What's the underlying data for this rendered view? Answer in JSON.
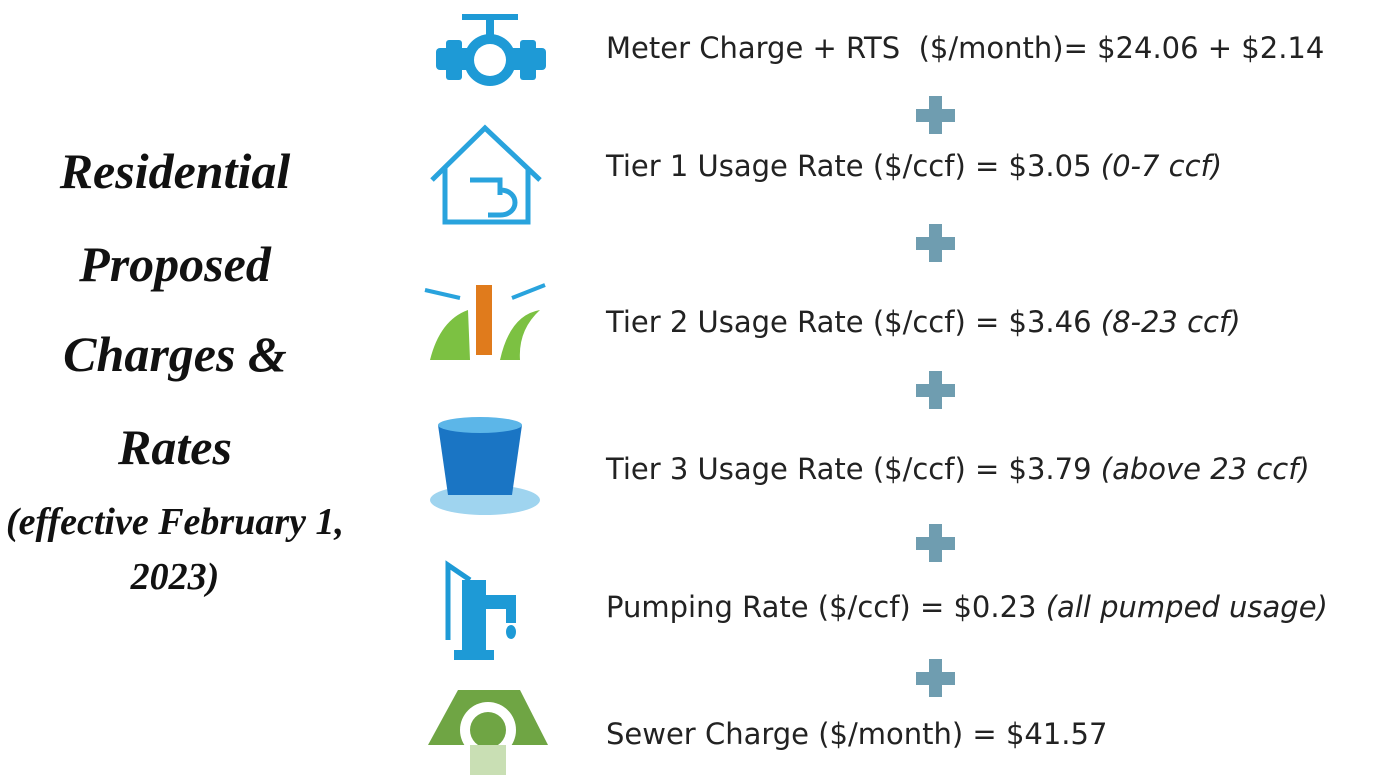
{
  "title_lines": [
    "Residential",
    "Proposed",
    "Charges &",
    "Rates",
    "(effective February 1,",
    "2023)"
  ],
  "items": [
    {
      "label": "Meter Charge + RTS  ($/month)= $24.06 + $2.14"
    },
    {
      "label": "Tier 1 Usage Rate ($/ccf) = $3.05",
      "note": "(0-7 ccf)"
    },
    {
      "label": "Tier 2 Usage Rate ($/ccf) = $3.46",
      "note": "(8-23 ccf)"
    },
    {
      "label": "Tier 3 Usage Rate ($/ccf) = $3.79",
      "note": "(above 23 ccf)"
    },
    {
      "label": "Pumping Rate ($/ccf) = $0.23",
      "note": "(all pumped usage)"
    },
    {
      "label": "Sewer Charge ($/month) = $41.57"
    }
  ]
}
